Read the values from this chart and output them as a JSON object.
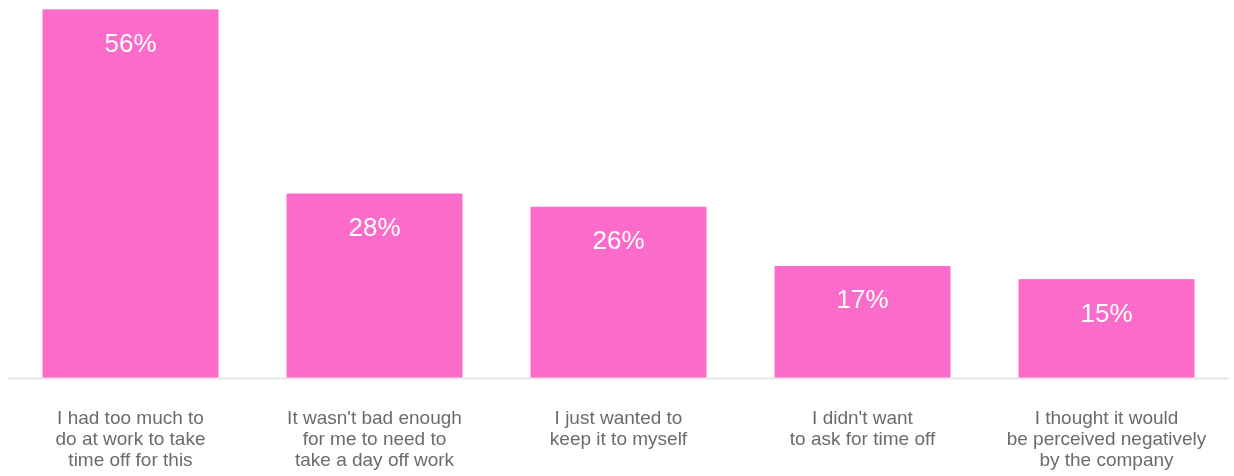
{
  "chart_data": {
    "type": "bar",
    "categories": [
      "I had too much to\ndo at work to take\ntime off for this",
      "It wasn't bad enough\nfor me to need to\ntake a day off work",
      "I just wanted to\nkeep it to myself",
      "I didn't want\nto ask for time off",
      "I thought it would\nbe perceived negatively\nby the company"
    ],
    "values": [
      56,
      28,
      26,
      17,
      15
    ],
    "value_labels": [
      "56%",
      "28%",
      "26%",
      "17%",
      "15%"
    ],
    "color": "#fb6bca",
    "grid": false
  }
}
